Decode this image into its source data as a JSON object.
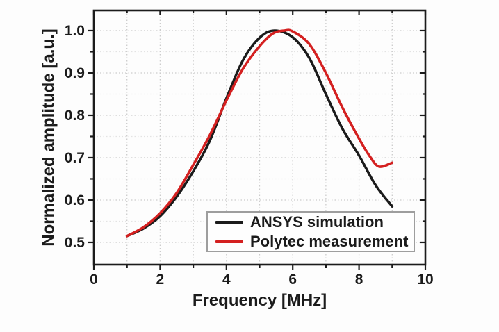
{
  "figure": {
    "background": "#fdfdfd",
    "frame_color": "#1b1b1b",
    "grid_major_color": "#cccccc",
    "grid_minor_color": "#e3e3e3",
    "tick_color": "#1b1b1b"
  },
  "chart_data": {
    "type": "line",
    "title": "",
    "xlabel": "Frequency [MHz]",
    "ylabel": "Normalized amplitude [a.u.]",
    "xlim": [
      0,
      10
    ],
    "ylim": [
      0.4475,
      1.0475
    ],
    "grid": "dotted, vertical every 1 MHz, horizontal major every 0.1 with lighter minor every 0.05",
    "legend_position": "inside bottom-right",
    "x_ticks": {
      "major_values": [
        0,
        2,
        4,
        6,
        8,
        10
      ],
      "major_labels": [
        "0",
        "2",
        "4",
        "6",
        "8",
        "10"
      ],
      "minor_values": [
        1,
        3,
        5,
        7,
        9
      ]
    },
    "y_ticks": {
      "major_values": [
        0.5,
        0.6,
        0.7,
        0.8,
        0.9,
        1.0
      ],
      "major_labels": [
        "0.5",
        "0.6",
        "0.7",
        "0.8",
        "0.9",
        "1.0"
      ],
      "minor_values": [
        0.55,
        0.65,
        0.75,
        0.85,
        0.95
      ]
    },
    "series": [
      {
        "name": "ANSYS simulation",
        "color": "#1b1b1b",
        "x": [
          1.0,
          1.5,
          2.0,
          2.5,
          3.0,
          3.5,
          4.0,
          4.5,
          5.0,
          5.45,
          6.0,
          6.5,
          7.0,
          7.5,
          8.0,
          8.5,
          9.0
        ],
        "y": [
          0.515,
          0.533,
          0.562,
          0.608,
          0.668,
          0.74,
          0.84,
          0.93,
          0.983,
          1.0,
          0.984,
          0.935,
          0.85,
          0.768,
          0.705,
          0.635,
          0.585
        ]
      },
      {
        "name": "Polytec measurement",
        "color": "#d42020",
        "x": [
          1.0,
          1.5,
          2.0,
          2.5,
          3.0,
          3.5,
          4.0,
          4.5,
          5.0,
          5.4,
          5.75,
          6.0,
          6.5,
          7.0,
          7.5,
          8.0,
          8.3,
          8.6,
          9.0
        ],
        "y": [
          0.515,
          0.536,
          0.569,
          0.617,
          0.683,
          0.753,
          0.835,
          0.91,
          0.963,
          0.993,
          1.0,
          0.998,
          0.968,
          0.9,
          0.818,
          0.745,
          0.706,
          0.679,
          0.688
        ]
      }
    ]
  }
}
